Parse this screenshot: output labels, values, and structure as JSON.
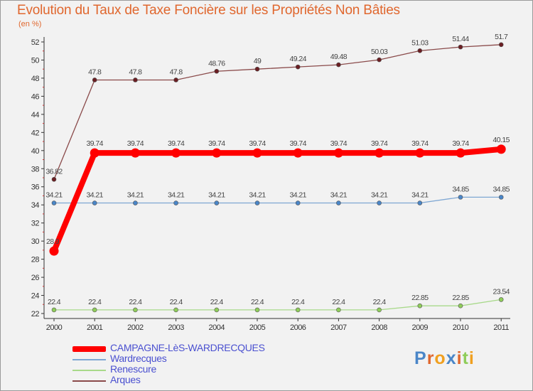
{
  "header": {
    "title": "Evolution du Taux de Taxe Foncière sur les Propriétés Non Bâties",
    "unit": "(en %)"
  },
  "chart_data": {
    "type": "line",
    "title": "Evolution du Taux de Taxe Foncière sur les Propriétés Non Bâties",
    "ylabel": "(en %)",
    "xlabel": "",
    "ylim": [
      22,
      52
    ],
    "yticks": [
      22,
      24,
      26,
      28,
      30,
      32,
      34,
      36,
      38,
      40,
      42,
      44,
      46,
      48,
      50,
      52
    ],
    "x": [
      "2000",
      "2001",
      "2002",
      "2003",
      "2004",
      "2005",
      "2006",
      "2007",
      "2008",
      "2009",
      "2010",
      "2011"
    ],
    "grid": false,
    "legend_position": "bottom-left",
    "series": [
      {
        "name": "CAMPAGNE-LèS-WARDRECQUES",
        "color": "#ff0000",
        "values": [
          28.9,
          39.74,
          39.74,
          39.74,
          39.74,
          39.74,
          39.74,
          39.74,
          39.74,
          39.74,
          39.74,
          40.15
        ],
        "labels": [
          "28.9",
          "39.74",
          "39.74",
          "39.74",
          "39.74",
          "39.74",
          "39.74",
          "39.74",
          "39.74",
          "39.74",
          "39.74",
          "40.15"
        ]
      },
      {
        "name": "Wardrecques",
        "color": "#7ea7d3",
        "marker": "#4a86c8",
        "values": [
          34.21,
          34.21,
          34.21,
          34.21,
          34.21,
          34.21,
          34.21,
          34.21,
          34.21,
          34.21,
          34.85,
          34.85
        ],
        "labels": [
          "34.21",
          "34.21",
          "34.21",
          "34.21",
          "34.21",
          "34.21",
          "34.21",
          "34.21",
          "34.21",
          "34.21",
          "34.85",
          "34.85"
        ]
      },
      {
        "name": "Renescure",
        "color": "#a8d98a",
        "marker": "#8fcd5a",
        "values": [
          22.4,
          22.4,
          22.4,
          22.4,
          22.4,
          22.4,
          22.4,
          22.4,
          22.4,
          22.85,
          22.85,
          23.54
        ],
        "labels": [
          "22.4",
          "22.4",
          "22.4",
          "22.4",
          "22.4",
          "22.4",
          "22.4",
          "22.4",
          "22.4",
          "22.85",
          "22.85",
          "23.54"
        ]
      },
      {
        "name": "Arques",
        "color": "#8a4a4a",
        "marker": "#6b1e22",
        "values": [
          36.82,
          47.8,
          47.8,
          47.8,
          48.76,
          49,
          49.24,
          49.48,
          50.03,
          51.03,
          51.44,
          51.7
        ],
        "labels": [
          "36.82",
          "47.8",
          "47.8",
          "47.8",
          "48.76",
          "49",
          "49.24",
          "49.48",
          "50.03",
          "51.03",
          "51.44",
          "51.7"
        ]
      }
    ]
  },
  "brand": {
    "logo_letters": [
      "P",
      "r",
      "o",
      "x",
      "i",
      "t",
      "i"
    ],
    "logo_colors": [
      "#4a86c8",
      "#e0672e",
      "#f0a020",
      "#4a86c8",
      "#e0672e",
      "#8fcd5a",
      "#f0a020"
    ]
  }
}
